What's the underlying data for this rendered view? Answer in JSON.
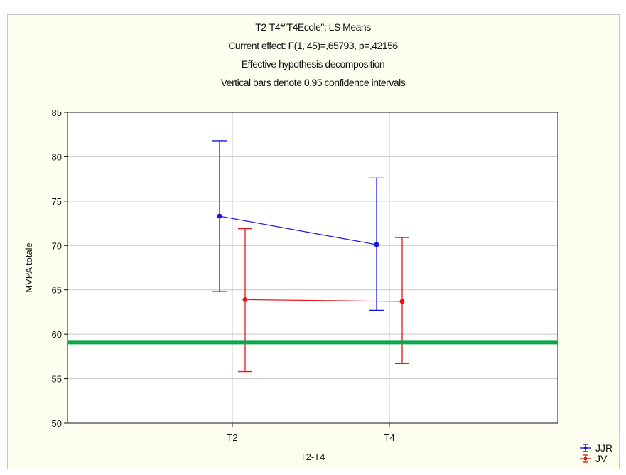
{
  "chart_data": {
    "type": "line",
    "title_lines": [
      "T2-T4*\"T4Ecole\"; LS Means",
      "Current effect: F(1, 45)=,65793, p=,42156",
      "Effective hypothesis decomposition",
      "Vertical bars denote 0,95 confidence intervals"
    ],
    "xlabel": "T2-T4",
    "ylabel": "MVPA totale",
    "categories": [
      "T2",
      "T4"
    ],
    "ylim": [
      50,
      85
    ],
    "yticks": [
      "85",
      "80",
      "75",
      "70",
      "65",
      "60",
      "55",
      "50"
    ],
    "grid": true,
    "legend_position": "bottom-right",
    "reference_line": {
      "value": 59.1,
      "color": "#0aa847"
    },
    "series": [
      {
        "name": "JJR",
        "color": "#1616e6",
        "values": [
          73.3,
          70.1
        ],
        "lower": [
          64.8,
          62.7
        ],
        "upper": [
          81.8,
          77.6
        ]
      },
      {
        "name": "JV",
        "color": "#e61616",
        "values": [
          63.9,
          63.7
        ],
        "lower": [
          55.8,
          56.7
        ],
        "upper": [
          71.9,
          70.9
        ]
      }
    ]
  }
}
